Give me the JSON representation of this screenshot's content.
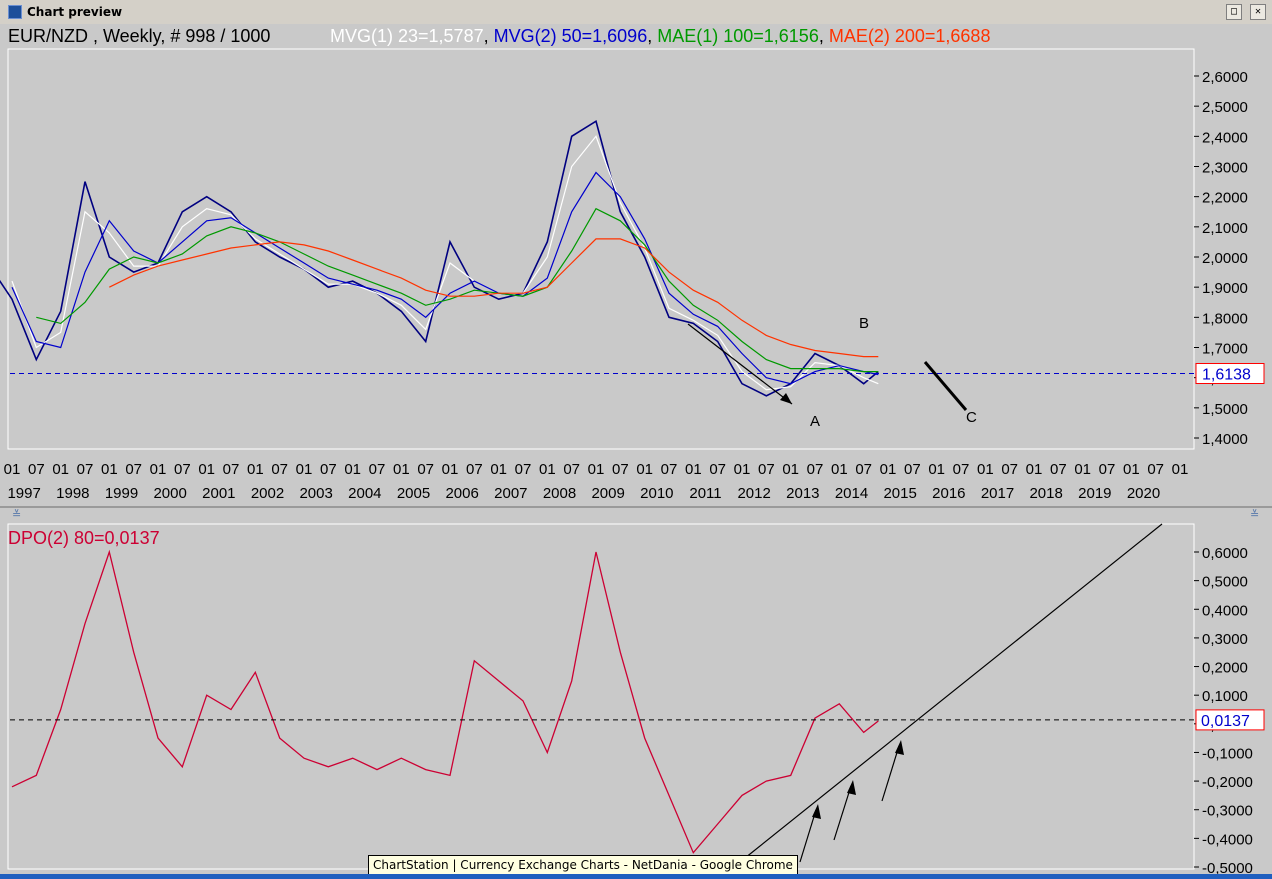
{
  "window": {
    "title": "Chart preview",
    "buttons": [
      "□",
      "✕"
    ]
  },
  "colors": {
    "bg": "#c9c9c9",
    "price": "#000080",
    "mvg1": "#ffffff",
    "mvg2": "#0000cc",
    "mae1": "#009900",
    "mae2": "#ff3300",
    "dpo": "#cc0033",
    "ref": "#0000cc"
  },
  "header": {
    "instrument": "EUR/NZD , Weekly, # 998 / 1000",
    "mvg1": "MVG(1) 23=1,5787",
    "mvg2": "MVG(2) 50=1,6096",
    "mae1": "MAE(1) 100=1,6156",
    "mae2": "MAE(2) 200=1,6688"
  },
  "upper": {
    "price_label": "1,6138",
    "annotations": {
      "a": "A",
      "b": "B",
      "c": "C"
    }
  },
  "lower": {
    "legend": "DPO(2) 80=0,0137",
    "value_label": "0,0137"
  },
  "caption": "ChartStation | Currency Exchange Charts - NetDania - Google Chrome",
  "chart_data": [
    {
      "type": "line",
      "title": "EUR/NZD , Weekly, # 998 / 1000",
      "x_axis": {
        "month_ticks": [
          "01",
          "07",
          "01",
          "07",
          "01",
          "07",
          "01",
          "07",
          "01",
          "07",
          "01",
          "07",
          "01",
          "07",
          "01",
          "07",
          "01",
          "07",
          "01",
          "07",
          "01",
          "07",
          "01",
          "07",
          "01",
          "07",
          "01",
          "07",
          "01",
          "07",
          "01",
          "07",
          "01",
          "07",
          "01",
          "07",
          "01",
          "07",
          "01",
          "07",
          "01",
          "07",
          "01",
          "07",
          "01",
          "07",
          "01",
          "07",
          "01"
        ],
        "year_ticks": [
          "1997",
          "1998",
          "1999",
          "2000",
          "2001",
          "2002",
          "2003",
          "2004",
          "2005",
          "2006",
          "2007",
          "2008",
          "2009",
          "2010",
          "2011",
          "2012",
          "2013",
          "2014",
          "2015",
          "2016",
          "2017",
          "2018",
          "2019",
          "2020"
        ]
      },
      "y_axis": {
        "ticks": [
          "2,6000",
          "2,5000",
          "2,4000",
          "2,3000",
          "2,2000",
          "2,1000",
          "2,0000",
          "1,9000",
          "1,8000",
          "1,7000",
          "1,6000",
          "1,5000",
          "1,4000"
        ],
        "range": [
          1.4,
          2.6
        ]
      },
      "reference_line": 1.6138,
      "x": [
        1996.5,
        1997.0,
        1997.5,
        1998.0,
        1998.5,
        1999.0,
        1999.5,
        2000.0,
        2000.5,
        2001.0,
        2001.5,
        2002.0,
        2002.5,
        2003.0,
        2003.5,
        2004.0,
        2004.5,
        2005.0,
        2005.5,
        2006.0,
        2006.5,
        2007.0,
        2007.5,
        2008.0,
        2008.5,
        2009.0,
        2009.5,
        2010.0,
        2010.5,
        2011.0,
        2011.5,
        2012.0,
        2012.5,
        2013.0,
        2013.5,
        2014.0,
        2014.5,
        2014.8
      ],
      "series": [
        {
          "name": "EUR/NZD",
          "values": [
            1.98,
            1.86,
            1.66,
            1.82,
            2.25,
            2.0,
            1.95,
            1.98,
            2.15,
            2.2,
            2.15,
            2.05,
            2.0,
            1.96,
            1.9,
            1.92,
            1.88,
            1.82,
            1.72,
            2.05,
            1.9,
            1.86,
            1.88,
            2.05,
            2.4,
            2.45,
            2.15,
            2.0,
            1.8,
            1.78,
            1.72,
            1.58,
            1.54,
            1.58,
            1.68,
            1.64,
            1.58,
            1.62
          ]
        },
        {
          "name": "MVG(1) 23=1,5787",
          "values": [
            null,
            1.92,
            1.7,
            1.75,
            2.15,
            2.08,
            1.97,
            1.97,
            2.1,
            2.16,
            2.14,
            2.06,
            2.01,
            1.96,
            1.91,
            1.91,
            1.88,
            1.84,
            1.76,
            1.98,
            1.92,
            1.88,
            1.88,
            2.0,
            2.3,
            2.4,
            2.18,
            2.03,
            1.83,
            1.79,
            1.74,
            1.62,
            1.56,
            1.57,
            1.65,
            1.64,
            1.6,
            1.58
          ]
        },
        {
          "name": "MVG(2) 50=1,6096",
          "values": [
            null,
            1.9,
            1.72,
            1.7,
            1.95,
            2.12,
            2.02,
            1.98,
            2.05,
            2.12,
            2.13,
            2.08,
            2.03,
            1.98,
            1.93,
            1.91,
            1.89,
            1.86,
            1.8,
            1.88,
            1.92,
            1.88,
            1.87,
            1.93,
            2.15,
            2.28,
            2.2,
            2.06,
            1.88,
            1.81,
            1.77,
            1.68,
            1.6,
            1.58,
            1.62,
            1.64,
            1.62,
            1.61
          ]
        },
        {
          "name": "MAE(1) 100=1,6156",
          "values": [
            null,
            null,
            1.8,
            1.78,
            1.85,
            1.96,
            2.0,
            1.98,
            2.01,
            2.07,
            2.1,
            2.08,
            2.05,
            2.01,
            1.97,
            1.94,
            1.91,
            1.88,
            1.84,
            1.86,
            1.89,
            1.88,
            1.87,
            1.9,
            2.02,
            2.16,
            2.12,
            2.04,
            1.92,
            1.84,
            1.79,
            1.72,
            1.66,
            1.63,
            1.63,
            1.63,
            1.62,
            1.62
          ]
        },
        {
          "name": "MAE(2) 200=1,6688",
          "values": [
            null,
            null,
            null,
            null,
            null,
            1.9,
            1.94,
            1.97,
            1.99,
            2.01,
            2.03,
            2.04,
            2.05,
            2.04,
            2.02,
            1.99,
            1.96,
            1.93,
            1.89,
            1.87,
            1.87,
            1.88,
            1.88,
            1.9,
            1.98,
            2.06,
            2.06,
            2.03,
            1.95,
            1.89,
            1.85,
            1.79,
            1.74,
            1.71,
            1.69,
            1.68,
            1.67,
            1.67
          ]
        }
      ]
    },
    {
      "type": "line",
      "title": "DPO(2) 80=0,0137",
      "y_axis": {
        "ticks": [
          "0,6000",
          "0,5000",
          "0,4000",
          "0,3000",
          "0,2000",
          "0,1000",
          "0,0000",
          "-0,1000",
          "-0,2000",
          "-0,3000",
          "-0,4000",
          "-0,5000"
        ],
        "range": [
          -0.5,
          0.6
        ]
      },
      "reference_line": 0.0137,
      "x": [
        1997.0,
        1997.5,
        1998.0,
        1998.5,
        1999.0,
        1999.5,
        2000.0,
        2000.5,
        2001.0,
        2001.5,
        2002.0,
        2002.5,
        2003.0,
        2003.5,
        2004.0,
        2004.5,
        2005.0,
        2005.5,
        2006.0,
        2006.5,
        2007.0,
        2007.5,
        2008.0,
        2008.5,
        2009.0,
        2009.5,
        2010.0,
        2010.5,
        2011.0,
        2011.5,
        2012.0,
        2012.5,
        2013.0,
        2013.5,
        2014.0,
        2014.5,
        2014.8
      ],
      "series": [
        {
          "name": "DPO(2) 80=0,0137",
          "values": [
            -0.22,
            -0.18,
            0.05,
            0.35,
            0.6,
            0.25,
            -0.05,
            -0.15,
            0.1,
            0.05,
            0.18,
            -0.05,
            -0.12,
            -0.15,
            -0.12,
            -0.16,
            -0.12,
            -0.16,
            -0.18,
            0.22,
            0.15,
            0.08,
            -0.1,
            0.15,
            0.6,
            0.25,
            -0.05,
            -0.25,
            -0.45,
            -0.35,
            -0.25,
            -0.2,
            -0.18,
            0.02,
            0.07,
            -0.03,
            0.01
          ]
        }
      ]
    }
  ]
}
